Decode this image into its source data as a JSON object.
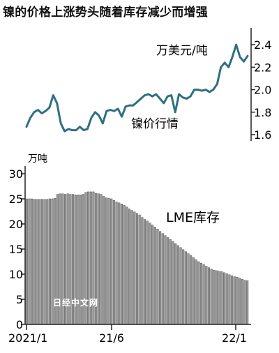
{
  "title": "镍的价格上涨势头随着库存减少而增强",
  "watermark": "日经中文网",
  "chart_data": [
    {
      "type": "line",
      "series_label": "镍价行情",
      "unit": "万美元/吨",
      "ylim": [
        1.6,
        2.45
      ],
      "yticks": [
        1.6,
        1.8,
        2.0,
        2.2,
        2.4
      ],
      "ytick_labels": [
        "1.6",
        "1.8",
        "2.0",
        "2.2",
        "2.4"
      ],
      "x_index": [
        0,
        1,
        2,
        3,
        4,
        5,
        6,
        7,
        8,
        9,
        10,
        11,
        12,
        13,
        14,
        15,
        16,
        17,
        18,
        19,
        20,
        21,
        22,
        23,
        24,
        25,
        26,
        27,
        28,
        29,
        30,
        31,
        32,
        33,
        34,
        35,
        36,
        37,
        38,
        39,
        40,
        41,
        42,
        43,
        44,
        45,
        46,
        47,
        48,
        49,
        50,
        51,
        52,
        53,
        54,
        55,
        56,
        57,
        58
      ],
      "values": [
        1.67,
        1.75,
        1.8,
        1.82,
        1.79,
        1.81,
        1.84,
        1.95,
        1.88,
        1.7,
        1.63,
        1.65,
        1.64,
        1.64,
        1.67,
        1.64,
        1.65,
        1.75,
        1.8,
        1.77,
        1.7,
        1.81,
        1.82,
        1.81,
        1.83,
        1.76,
        1.85,
        1.86,
        1.86,
        1.89,
        1.92,
        1.95,
        1.96,
        1.94,
        1.96,
        1.92,
        1.88,
        1.94,
        1.95,
        1.8,
        1.96,
        1.93,
        1.92,
        1.94,
        2.0,
        2.0,
        1.99,
        2.0,
        1.98,
        2.0,
        2.05,
        2.2,
        2.24,
        2.2,
        2.29,
        2.4,
        2.29,
        2.25,
        2.3
      ],
      "color": "#2f6f82"
    },
    {
      "type": "bar",
      "series_label": "LME库存",
      "unit": "万吨",
      "ylim": [
        0,
        30
      ],
      "yticks": [
        0,
        5,
        10,
        15,
        20,
        25,
        30
      ],
      "ytick_labels": [
        "0",
        "5",
        "10",
        "15",
        "20",
        "25",
        "30"
      ],
      "x_tick_labels": [
        "2021/1",
        "21/6",
        "22/1"
      ],
      "values": [
        25.0,
        25.0,
        25.0,
        24.9,
        24.9,
        24.9,
        24.9,
        24.9,
        24.9,
        25.0,
        25.0,
        25.1,
        25.9,
        26.0,
        26.0,
        25.9,
        26.0,
        25.9,
        25.9,
        25.8,
        25.8,
        25.8,
        25.9,
        26.3,
        26.4,
        26.4,
        26.4,
        26.1,
        26.0,
        25.9,
        25.5,
        25.2,
        25.1,
        25.0,
        24.7,
        24.4,
        24.2,
        24.0,
        23.7,
        23.4,
        23.0,
        22.7,
        22.4,
        22.1,
        21.8,
        21.3,
        20.9,
        20.6,
        20.2,
        19.8,
        19.4,
        19.0,
        18.5,
        18.1,
        17.7,
        17.3,
        16.9,
        16.5,
        16.1,
        15.7,
        15.3,
        14.9,
        14.5,
        14.1,
        13.7,
        13.3,
        12.9,
        12.5,
        12.2,
        11.9,
        11.6,
        11.3,
        11.0,
        10.8,
        10.7,
        10.6,
        10.5,
        10.3,
        10.1,
        9.9,
        9.7,
        9.5,
        9.4,
        9.2,
        9.0,
        8.8,
        8.7
      ],
      "color": "#999999"
    }
  ]
}
